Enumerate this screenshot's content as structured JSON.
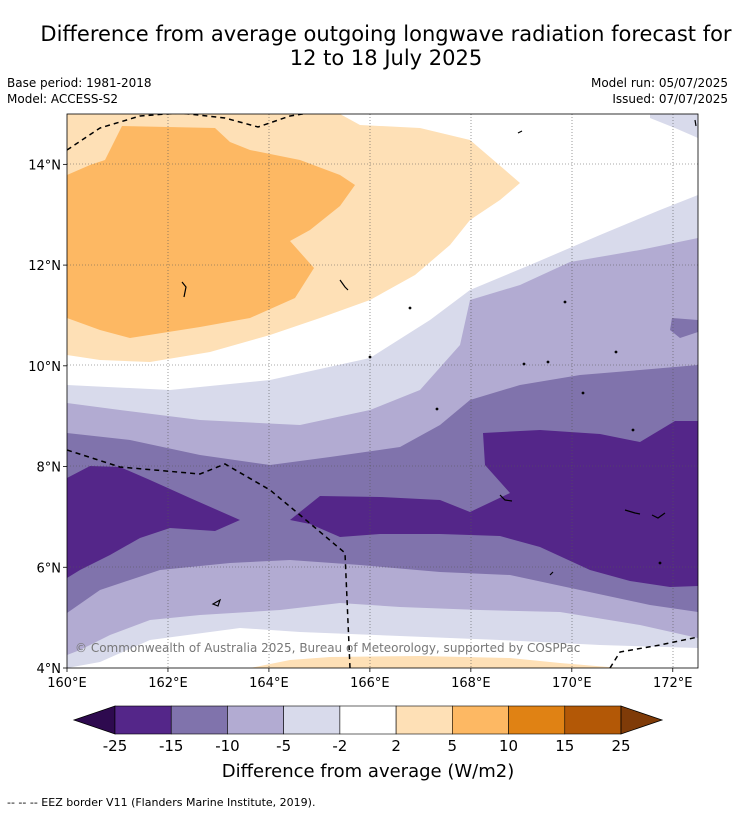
{
  "title": "Difference from average outgoing longwave radiation forecast for",
  "title_line2": "12 to 18 July 2025",
  "base_period": "Base period: 1981-2018",
  "model": "Model: ACCESS-S2",
  "model_run": "Model run: 05/07/2025",
  "issued": "Issued: 07/07/2025",
  "copyright": "© Commonwealth of Australia 2025, Bureau of Meteorology, supported by COSPPac",
  "colorbar": {
    "label": "Difference from average (W/m2)",
    "ticks": [
      "-25",
      "-15",
      "-10",
      "-5",
      "-2",
      "2",
      "5",
      "10",
      "15",
      "25"
    ],
    "colors": [
      "#2e0a4f",
      "#542689",
      "#8073ac",
      "#b2abd2",
      "#d8daeb",
      "#ffffff",
      "#fee0b6",
      "#fdb863",
      "#e08214",
      "#b35806",
      "#7f3b08"
    ]
  },
  "footer": "--  --  -- EEZ border V11 (Flanders Marine Institute, 2019).",
  "axes": {
    "x_ticks": [
      "160°E",
      "162°E",
      "164°E",
      "166°E",
      "168°E",
      "170°E",
      "172°E"
    ],
    "y_ticks": [
      "14°N",
      "12°N",
      "10°N",
      "8°N",
      "6°N",
      "4°N"
    ]
  },
  "map": {
    "lon_range": [
      160,
      172.5
    ],
    "lat_range": [
      4,
      15
    ]
  }
}
